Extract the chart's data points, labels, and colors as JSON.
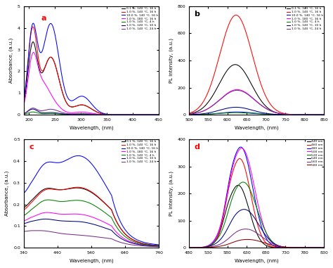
{
  "panel_a": {
    "label": "a",
    "label_color": "red",
    "xlabel": "Wavelength, (nm)",
    "ylabel": "Absorbance, (a.u.)",
    "xlim": [
      190,
      450
    ],
    "ylim": [
      0,
      5
    ],
    "yticks": [
      0,
      1,
      2,
      3,
      4,
      5
    ],
    "xticks": [
      200,
      250,
      300,
      350,
      400,
      450
    ],
    "curves": [
      {
        "color": "black",
        "label": "0.1 %, 140 °C, 16 h",
        "shape": "uv_0.1"
      },
      {
        "color": "red",
        "label": "1.0 %, 140 °C, 16 h",
        "shape": "uv_1.0"
      },
      {
        "color": "blue",
        "label": "10.0 %, 140 °C, 16 h",
        "shape": "uv_10"
      },
      {
        "color": "magenta",
        "label": "1.0 %, 180 °C, 16 h",
        "shape": "uv_180"
      },
      {
        "color": "green",
        "label": "1.0 %, 140 °C, 4 h",
        "shape": "uv_4h"
      },
      {
        "color": "#000080",
        "label": "1.0 %, 140 °C, 10 h",
        "shape": "uv_10h"
      },
      {
        "color": "#7B2D8B",
        "label": "1.0 %, 140 °C, 24 h",
        "shape": "uv_24h"
      }
    ]
  },
  "panel_b": {
    "label": "b",
    "label_color": "black",
    "xlabel": "Wavelength, (nm)",
    "ylabel": "PL intensity, (a.u.)",
    "xlim": [
      500,
      850
    ],
    "ylim": [
      0,
      800
    ],
    "yticks": [
      0,
      200,
      400,
      600,
      800
    ],
    "xticks": [
      500,
      550,
      600,
      650,
      700,
      750,
      800,
      850
    ],
    "curves": [
      {
        "color": "black",
        "label": "0.1 %, 140 °C, 16 h",
        "peak_x": 620,
        "peak_y": 370,
        "sigma": 42
      },
      {
        "color": "red",
        "label": "1.0 %, 140 °C, 16 h",
        "peak_x": 622,
        "peak_y": 735,
        "sigma": 42
      },
      {
        "color": "blue",
        "label": "10.0 %, 140 °C, 16 h",
        "peak_x": 625,
        "peak_y": 20,
        "sigma": 42
      },
      {
        "color": "magenta",
        "label": "1.0 %, 180 °C, 16 h",
        "peak_x": 625,
        "peak_y": 185,
        "sigma": 45
      },
      {
        "color": "green",
        "label": "1.0 %, 140 °C, 4 h",
        "peak_x": 620,
        "peak_y": 15,
        "sigma": 42
      },
      {
        "color": "#000080",
        "label": "1.0 %, 140 °C, 10 h",
        "peak_x": 622,
        "peak_y": 55,
        "sigma": 42
      },
      {
        "color": "#7B2D8B",
        "label": "1.0 %, 140 °C, 24 h",
        "peak_x": 625,
        "peak_y": 180,
        "sigma": 45
      }
    ]
  },
  "panel_c": {
    "label": "c",
    "label_color": "red",
    "xlabel": "Wavelength, (nm)",
    "ylabel": "Absorbance, (a.u.)",
    "xlim": [
      340,
      740
    ],
    "ylim": [
      0,
      0.5
    ],
    "yticks": [
      0.0,
      0.1,
      0.2,
      0.3,
      0.4,
      0.5
    ],
    "xticks": [
      340,
      440,
      540,
      640,
      740
    ],
    "curves": [
      {
        "color": "black",
        "label": "0.1 %, 140 °C, 16 h",
        "peak_x": 510,
        "peak_amp": 0.185,
        "peak_sig": 85,
        "base": 0.105,
        "shoulder_x": 400,
        "shoulder_amp": 0.06,
        "shoulder_sig": 30
      },
      {
        "color": "red",
        "label": "1.0 %, 140 °C, 16 h",
        "peak_x": 510,
        "peak_amp": 0.195,
        "peak_sig": 85,
        "base": 0.097,
        "shoulder_x": 400,
        "shoulder_amp": 0.06,
        "shoulder_sig": 30
      },
      {
        "color": "blue",
        "label": "10.0 %, 140 °C, 16 h",
        "peak_x": 510,
        "peak_amp": 0.295,
        "peak_sig": 75,
        "base": 0.15,
        "shoulder_x": 400,
        "shoulder_amp": 0.1,
        "shoulder_sig": 30
      },
      {
        "color": "magenta",
        "label": "1.0 %, 180 °C, 16 h",
        "peak_x": 510,
        "peak_amp": 0.09,
        "peak_sig": 85,
        "base": 0.075,
        "shoulder_x": 400,
        "shoulder_amp": 0.03,
        "shoulder_sig": 30
      },
      {
        "color": "green",
        "label": "1.0 %, 140 °C, 4 h",
        "peak_x": 510,
        "peak_amp": 0.145,
        "peak_sig": 85,
        "base": 0.085,
        "shoulder_x": 400,
        "shoulder_amp": 0.05,
        "shoulder_sig": 30
      },
      {
        "color": "#000080",
        "label": "1.0 %, 140 °C, 10 h",
        "peak_x": 510,
        "peak_amp": 0.06,
        "peak_sig": 85,
        "base": 0.07,
        "shoulder_x": 400,
        "shoulder_amp": 0.02,
        "shoulder_sig": 30
      },
      {
        "color": "#7B2D8B",
        "label": "1.0 %, 140 °C, 24 h",
        "peak_x": 510,
        "peak_amp": 0.015,
        "peak_sig": 85,
        "base": 0.05,
        "shoulder_x": 400,
        "shoulder_amp": 0.01,
        "shoulder_sig": 30
      }
    ]
  },
  "panel_d": {
    "label": "d",
    "label_color": "red",
    "xlabel": "Wavelength, (nm)",
    "ylabel": "PL intensity, (a.u.)",
    "xlim": [
      480,
      830
    ],
    "ylim": [
      0,
      400
    ],
    "yticks": [
      0,
      100,
      200,
      300,
      400
    ],
    "xticks": [
      480,
      530,
      580,
      630,
      680,
      730,
      780,
      830
    ],
    "curves": [
      {
        "color": "black",
        "label": "440 nm",
        "peak_x": 608,
        "peak_y": 230,
        "sigma": 28
      },
      {
        "color": "red",
        "label": "460 nm",
        "peak_x": 612,
        "peak_y": 328,
        "sigma": 28
      },
      {
        "color": "blue",
        "label": "480 nm",
        "peak_x": 615,
        "peak_y": 370,
        "sigma": 30
      },
      {
        "color": "magenta",
        "label": "500 nm",
        "peak_x": 618,
        "peak_y": 365,
        "sigma": 32
      },
      {
        "color": "green",
        "label": "520 nm",
        "peak_x": 622,
        "peak_y": 240,
        "sigma": 34
      },
      {
        "color": "#000080",
        "label": "540 nm",
        "peak_x": 625,
        "peak_y": 140,
        "sigma": 36
      },
      {
        "color": "#7B2D8B",
        "label": "560 nm",
        "peak_x": 630,
        "peak_y": 68,
        "sigma": 38
      },
      {
        "color": "#8B0000",
        "label": "580 nm",
        "peak_x": 635,
        "peak_y": 30,
        "sigma": 40
      }
    ]
  }
}
